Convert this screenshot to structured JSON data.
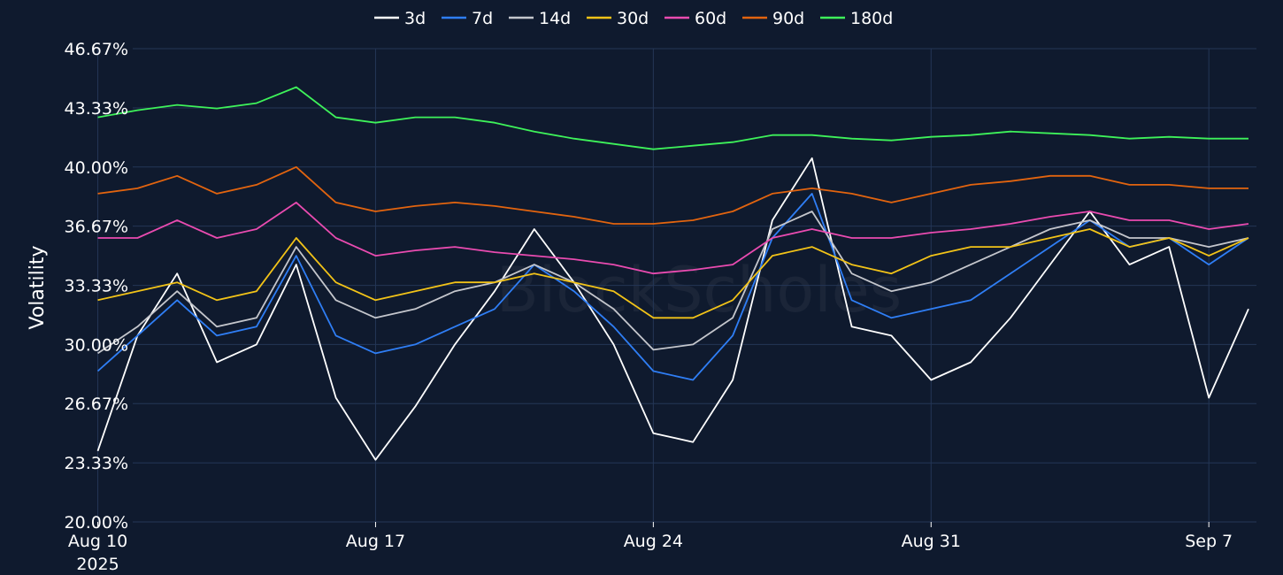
{
  "chart_data": {
    "type": "line",
    "ylabel": "Volatility",
    "watermark": "BlockScholes",
    "ylim": [
      20.0,
      46.67
    ],
    "y_ticks": [
      "20.00%",
      "23.33%",
      "26.67%",
      "30.00%",
      "33.33%",
      "36.67%",
      "40.00%",
      "43.33%",
      "46.67%"
    ],
    "y_tick_values": [
      20.0,
      23.33,
      26.67,
      30.0,
      33.33,
      36.67,
      40.0,
      43.33,
      46.67
    ],
    "x_range": [
      "2025-08-10",
      "2025-09-08"
    ],
    "x_ticks": [
      {
        "date": "2025-08-10",
        "label": "Aug 10",
        "sublabel": "2025"
      },
      {
        "date": "2025-08-17",
        "label": "Aug 17",
        "sublabel": ""
      },
      {
        "date": "2025-08-24",
        "label": "Aug 24",
        "sublabel": ""
      },
      {
        "date": "2025-08-31",
        "label": "Aug 31",
        "sublabel": ""
      },
      {
        "date": "2025-09-07",
        "label": "Sep 7",
        "sublabel": ""
      }
    ],
    "grid": true,
    "legend_position": "top-center",
    "series": [
      {
        "name": "3d",
        "color": "#ffffff",
        "x": [
          "2025-08-10",
          "2025-08-11",
          "2025-08-12",
          "2025-08-13",
          "2025-08-14",
          "2025-08-15",
          "2025-08-16",
          "2025-08-17",
          "2025-08-18",
          "2025-08-19",
          "2025-08-20",
          "2025-08-21",
          "2025-08-22",
          "2025-08-23",
          "2025-08-24",
          "2025-08-25",
          "2025-08-26",
          "2025-08-27",
          "2025-08-28",
          "2025-08-29",
          "2025-08-30",
          "2025-08-31",
          "2025-09-01",
          "2025-09-02",
          "2025-09-03",
          "2025-09-04",
          "2025-09-05",
          "2025-09-06",
          "2025-09-07",
          "2025-09-08"
        ],
        "values": [
          24.0,
          30.5,
          34.0,
          29.0,
          30.0,
          34.5,
          27.0,
          23.5,
          26.5,
          30.0,
          33.0,
          36.5,
          33.5,
          30.0,
          25.0,
          24.5,
          28.0,
          37.0,
          40.5,
          31.0,
          30.5,
          28.0,
          29.0,
          31.5,
          34.5,
          37.5,
          34.5,
          35.5,
          27.0,
          32.0
        ]
      },
      {
        "name": "7d",
        "color": "#2f7ef5",
        "x": [
          "2025-08-10",
          "2025-08-11",
          "2025-08-12",
          "2025-08-13",
          "2025-08-14",
          "2025-08-15",
          "2025-08-16",
          "2025-08-17",
          "2025-08-18",
          "2025-08-19",
          "2025-08-20",
          "2025-08-21",
          "2025-08-22",
          "2025-08-23",
          "2025-08-24",
          "2025-08-25",
          "2025-08-26",
          "2025-08-27",
          "2025-08-28",
          "2025-08-29",
          "2025-08-30",
          "2025-08-31",
          "2025-09-01",
          "2025-09-02",
          "2025-09-03",
          "2025-09-04",
          "2025-09-05",
          "2025-09-06",
          "2025-09-07",
          "2025-09-08"
        ],
        "values": [
          28.5,
          30.5,
          32.5,
          30.5,
          31.0,
          35.0,
          30.5,
          29.5,
          30.0,
          31.0,
          32.0,
          34.5,
          33.0,
          31.0,
          28.5,
          28.0,
          30.5,
          36.0,
          38.5,
          32.5,
          31.5,
          32.0,
          32.5,
          34.0,
          35.5,
          37.0,
          35.5,
          36.0,
          34.5,
          36.0
        ]
      },
      {
        "name": "14d",
        "color": "#c4c6cc",
        "x": [
          "2025-08-10",
          "2025-08-11",
          "2025-08-12",
          "2025-08-13",
          "2025-08-14",
          "2025-08-15",
          "2025-08-16",
          "2025-08-17",
          "2025-08-18",
          "2025-08-19",
          "2025-08-20",
          "2025-08-21",
          "2025-08-22",
          "2025-08-23",
          "2025-08-24",
          "2025-08-25",
          "2025-08-26",
          "2025-08-27",
          "2025-08-28",
          "2025-08-29",
          "2025-08-30",
          "2025-08-31",
          "2025-09-01",
          "2025-09-02",
          "2025-09-03",
          "2025-09-04",
          "2025-09-05",
          "2025-09-06",
          "2025-09-07",
          "2025-09-08"
        ],
        "values": [
          29.5,
          31.0,
          33.0,
          31.0,
          31.5,
          35.5,
          32.5,
          31.5,
          32.0,
          33.0,
          33.5,
          34.5,
          33.5,
          32.0,
          29.7,
          30.0,
          31.5,
          36.5,
          37.5,
          34.0,
          33.0,
          33.5,
          34.5,
          35.5,
          36.5,
          37.0,
          36.0,
          36.0,
          35.5,
          36.0
        ]
      },
      {
        "name": "30d",
        "color": "#f2c318",
        "x": [
          "2025-08-10",
          "2025-08-11",
          "2025-08-12",
          "2025-08-13",
          "2025-08-14",
          "2025-08-15",
          "2025-08-16",
          "2025-08-17",
          "2025-08-18",
          "2025-08-19",
          "2025-08-20",
          "2025-08-21",
          "2025-08-22",
          "2025-08-23",
          "2025-08-24",
          "2025-08-25",
          "2025-08-26",
          "2025-08-27",
          "2025-08-28",
          "2025-08-29",
          "2025-08-30",
          "2025-08-31",
          "2025-09-01",
          "2025-09-02",
          "2025-09-03",
          "2025-09-04",
          "2025-09-05",
          "2025-09-06",
          "2025-09-07",
          "2025-09-08"
        ],
        "values": [
          32.5,
          33.0,
          33.5,
          32.5,
          33.0,
          36.0,
          33.5,
          32.5,
          33.0,
          33.5,
          33.5,
          34.0,
          33.5,
          33.0,
          31.5,
          31.5,
          32.5,
          35.0,
          35.5,
          34.5,
          34.0,
          35.0,
          35.5,
          35.5,
          36.0,
          36.5,
          35.5,
          36.0,
          35.0,
          36.0
        ]
      },
      {
        "name": "60d",
        "color": "#e94bb0",
        "x": [
          "2025-08-10",
          "2025-08-11",
          "2025-08-12",
          "2025-08-13",
          "2025-08-14",
          "2025-08-15",
          "2025-08-16",
          "2025-08-17",
          "2025-08-18",
          "2025-08-19",
          "2025-08-20",
          "2025-08-21",
          "2025-08-22",
          "2025-08-23",
          "2025-08-24",
          "2025-08-25",
          "2025-08-26",
          "2025-08-27",
          "2025-08-28",
          "2025-08-29",
          "2025-08-30",
          "2025-08-31",
          "2025-09-01",
          "2025-09-02",
          "2025-09-03",
          "2025-09-04",
          "2025-09-05",
          "2025-09-06",
          "2025-09-07",
          "2025-09-08"
        ],
        "values": [
          36.0,
          36.0,
          37.0,
          36.0,
          36.5,
          38.0,
          36.0,
          35.0,
          35.3,
          35.5,
          35.2,
          35.0,
          34.8,
          34.5,
          34.0,
          34.2,
          34.5,
          36.0,
          36.5,
          36.0,
          36.0,
          36.3,
          36.5,
          36.8,
          37.2,
          37.5,
          37.0,
          37.0,
          36.5,
          36.8
        ]
      },
      {
        "name": "90d",
        "color": "#e2640f",
        "x": [
          "2025-08-10",
          "2025-08-11",
          "2025-08-12",
          "2025-08-13",
          "2025-08-14",
          "2025-08-15",
          "2025-08-16",
          "2025-08-17",
          "2025-08-18",
          "2025-08-19",
          "2025-08-20",
          "2025-08-21",
          "2025-08-22",
          "2025-08-23",
          "2025-08-24",
          "2025-08-25",
          "2025-08-26",
          "2025-08-27",
          "2025-08-28",
          "2025-08-29",
          "2025-08-30",
          "2025-08-31",
          "2025-09-01",
          "2025-09-02",
          "2025-09-03",
          "2025-09-04",
          "2025-09-05",
          "2025-09-06",
          "2025-09-07",
          "2025-09-08"
        ],
        "values": [
          38.5,
          38.8,
          39.5,
          38.5,
          39.0,
          40.0,
          38.0,
          37.5,
          37.8,
          38.0,
          37.8,
          37.5,
          37.2,
          36.8,
          36.8,
          37.0,
          37.5,
          38.5,
          38.8,
          38.5,
          38.0,
          38.5,
          39.0,
          39.2,
          39.5,
          39.5,
          39.0,
          39.0,
          38.8,
          38.8
        ]
      },
      {
        "name": "180d",
        "color": "#3ef25a",
        "x": [
          "2025-08-10",
          "2025-08-11",
          "2025-08-12",
          "2025-08-13",
          "2025-08-14",
          "2025-08-15",
          "2025-08-16",
          "2025-08-17",
          "2025-08-18",
          "2025-08-19",
          "2025-08-20",
          "2025-08-21",
          "2025-08-22",
          "2025-08-23",
          "2025-08-24",
          "2025-08-25",
          "2025-08-26",
          "2025-08-27",
          "2025-08-28",
          "2025-08-29",
          "2025-08-30",
          "2025-08-31",
          "2025-09-01",
          "2025-09-02",
          "2025-09-03",
          "2025-09-04",
          "2025-09-05",
          "2025-09-06",
          "2025-09-07",
          "2025-09-08"
        ],
        "values": [
          42.8,
          43.2,
          43.5,
          43.3,
          43.6,
          44.5,
          42.8,
          42.5,
          42.8,
          42.8,
          42.5,
          42.0,
          41.6,
          41.3,
          41.0,
          41.2,
          41.4,
          41.8,
          41.8,
          41.6,
          41.5,
          41.7,
          41.8,
          42.0,
          41.9,
          41.8,
          41.6,
          41.7,
          41.6,
          41.6
        ]
      }
    ]
  }
}
